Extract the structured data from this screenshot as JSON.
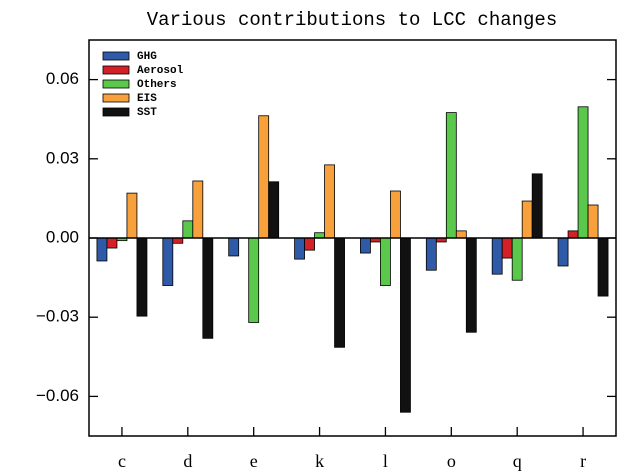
{
  "chart_data": {
    "type": "bar",
    "title": "Various contributions to LCC changes",
    "categories": [
      "c",
      "d",
      "e",
      "k",
      "l",
      "o",
      "q",
      "r"
    ],
    "series": [
      {
        "name": "GHG",
        "color": "#2e5aa8",
        "values": [
          -0.0087,
          -0.018,
          -0.0068,
          -0.008,
          -0.0057,
          -0.0122,
          -0.0137,
          -0.0106
        ]
      },
      {
        "name": "Aerosol",
        "color": "#d42027",
        "values": [
          -0.0038,
          -0.002,
          0,
          -0.0046,
          -0.0015,
          -0.0015,
          -0.0076,
          0.0027
        ]
      },
      {
        "name": "Others",
        "color": "#5ac84a",
        "values": [
          -0.001,
          0.0065,
          -0.032,
          0.002,
          -0.018,
          0.0475,
          -0.016,
          0.0497
        ]
      },
      {
        "name": "EIS",
        "color": "#f7a03c",
        "values": [
          0.017,
          0.0216,
          0.0463,
          0.0277,
          0.0178,
          0.0027,
          0.014,
          0.0125
        ]
      },
      {
        "name": "SST",
        "color": "#111111",
        "values": [
          -0.0296,
          -0.038,
          0.0213,
          -0.0414,
          -0.066,
          -0.0357,
          0.0243,
          -0.022
        ]
      }
    ],
    "ylim": [
      -0.075,
      0.075
    ],
    "yticks": [
      {
        "value": -0.06,
        "label": "−0.06"
      },
      {
        "value": -0.03,
        "label": "−0.03"
      },
      {
        "value": 0,
        "label": "0.00"
      },
      0.03,
      0.06
    ],
    "legend": "upper left",
    "grid": false
  }
}
